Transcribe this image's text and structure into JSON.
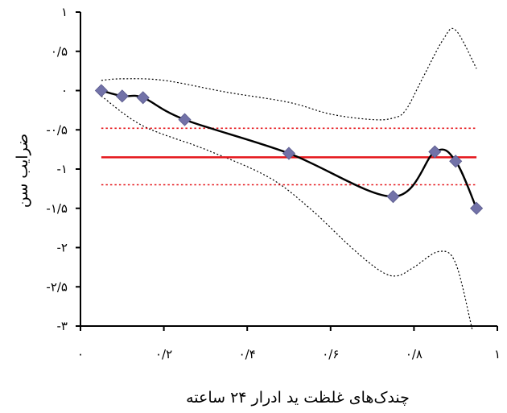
{
  "chart_data": {
    "type": "line",
    "xlabel": "چندک‌های غلظت ید ادرار ۲۴ ساعته",
    "ylabel": "ضرایب سن",
    "xlim": [
      0,
      1
    ],
    "ylim": [
      -3,
      1
    ],
    "x_ticks": [
      {
        "value": 0,
        "label": "۰"
      },
      {
        "value": 0.2,
        "label": "۰/۲"
      },
      {
        "value": 0.4,
        "label": "۰/۴"
      },
      {
        "value": 0.6,
        "label": "۰/۶"
      },
      {
        "value": 0.8,
        "label": "۰/۸"
      },
      {
        "value": 1,
        "label": "۱"
      }
    ],
    "y_ticks": [
      {
        "value": 1,
        "label": "۱"
      },
      {
        "value": 0.5,
        "label": "۰/۵"
      },
      {
        "value": 0,
        "label": "۰"
      },
      {
        "value": -0.5,
        "label": "-۰/۵"
      },
      {
        "value": -1,
        "label": "-۱"
      },
      {
        "value": -1.5,
        "label": "-۱/۵"
      },
      {
        "value": -2,
        "label": "-۲"
      },
      {
        "value": -2.5,
        "label": "-۲/۵"
      },
      {
        "value": -3,
        "label": "-۳"
      }
    ],
    "grid": false,
    "legend": "none",
    "series": [
      {
        "role": "estimate",
        "color": "#000000",
        "style": "solid-smooth",
        "markers": "diamond",
        "marker_color": "#7272A8",
        "x": [
          0.05,
          0.1,
          0.15,
          0.25,
          0.5,
          0.75,
          0.85,
          0.9,
          0.95
        ],
        "y": [
          0,
          -0.07,
          -0.09,
          -0.37,
          -0.8,
          -1.35,
          -0.78,
          -0.9,
          -1.5
        ]
      },
      {
        "role": "upper-confidence-band",
        "color": "#000000",
        "style": "dotted-smooth",
        "x": [
          0.05,
          0.1,
          0.2,
          0.35,
          0.5,
          0.6,
          0.7,
          0.75,
          0.78,
          0.82,
          0.87,
          0.9,
          0.95
        ],
        "y": [
          0.13,
          0.15,
          0.13,
          -0.02,
          -0.15,
          -0.3,
          -0.37,
          -0.35,
          -0.25,
          0.15,
          0.65,
          0.77,
          0.28
        ]
      },
      {
        "role": "lower-confidence-band",
        "color": "#000000",
        "style": "dotted-smooth",
        "x": [
          0.05,
          0.15,
          0.3,
          0.45,
          0.55,
          0.65,
          0.72,
          0.76,
          0.8,
          0.86,
          0.9,
          0.94
        ],
        "y": [
          -0.07,
          -0.45,
          -0.75,
          -1.1,
          -1.5,
          -2.0,
          -2.3,
          -2.36,
          -2.25,
          -2.05,
          -2.2,
          -3.05
        ]
      },
      {
        "role": "reference-mean",
        "color": "#E5141A",
        "style": "solid",
        "x": [
          0.05,
          0.95
        ],
        "y": [
          -0.85,
          -0.85
        ]
      },
      {
        "role": "reference-upper",
        "color": "#E5141A",
        "style": "dotted",
        "x": [
          0.05,
          0.95
        ],
        "y": [
          -0.48,
          -0.48
        ]
      },
      {
        "role": "reference-lower",
        "color": "#E5141A",
        "style": "dotted",
        "x": [
          0.05,
          0.95
        ],
        "y": [
          -1.2,
          -1.2
        ]
      }
    ]
  }
}
